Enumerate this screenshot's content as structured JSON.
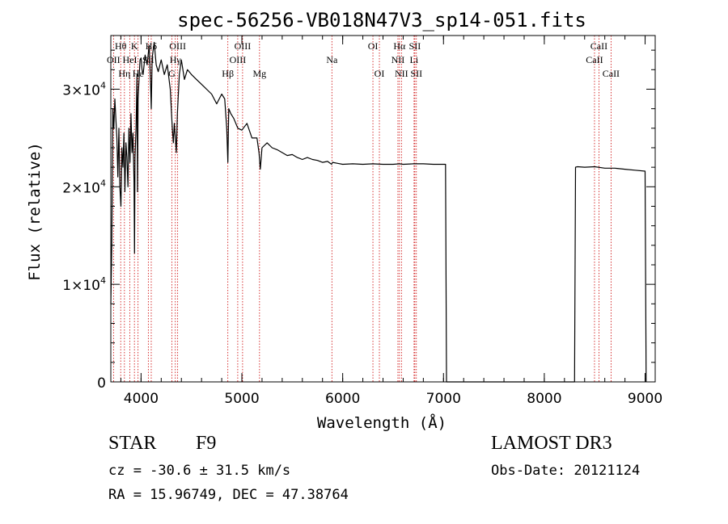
{
  "chart_data": {
    "type": "line",
    "title": "spec-56256-VB018N47V3_sp14-051.fits",
    "xlabel": "Wavelength (Å)",
    "ylabel": "Flux (relative)",
    "xlim": [
      3700,
      9100
    ],
    "ylim": [
      0,
      35500
    ],
    "x_ticks": [
      4000,
      5000,
      6000,
      7000,
      8000,
      9000
    ],
    "x_tick_labels": [
      "4000",
      "5000",
      "6000",
      "7000",
      "8000",
      "9000"
    ],
    "y_ticks": [
      {
        "value": 0,
        "mantissa": "0",
        "exponent": ""
      },
      {
        "value": 10000,
        "mantissa": "1×10",
        "exponent": "4"
      },
      {
        "value": 20000,
        "mantissa": "2×10",
        "exponent": "4"
      },
      {
        "value": 30000,
        "mantissa": "3×10",
        "exponent": "4"
      }
    ],
    "grid": false,
    "series": [
      {
        "name": "spectrum",
        "x": [
          3700,
          3710,
          3720,
          3730,
          3740,
          3750,
          3760,
          3770,
          3780,
          3790,
          3800,
          3810,
          3820,
          3830,
          3840,
          3850,
          3860,
          3870,
          3880,
          3890,
          3900,
          3910,
          3920,
          3930,
          3935,
          3940,
          3950,
          3960,
          3965,
          3970,
          3980,
          3990,
          4000,
          4010,
          4020,
          4040,
          4060,
          4080,
          4095,
          4101,
          4110,
          4130,
          4150,
          4170,
          4200,
          4230,
          4260,
          4290,
          4310,
          4320,
          4330,
          4340,
          4350,
          4360,
          4380,
          4400,
          4430,
          4460,
          4500,
          4550,
          4600,
          4650,
          4700,
          4750,
          4800,
          4830,
          4850,
          4861,
          4870,
          4890,
          4920,
          4960,
          5000,
          5050,
          5100,
          5150,
          5170,
          5183,
          5200,
          5250,
          5300,
          5350,
          5400,
          5450,
          5500,
          5550,
          5600,
          5650,
          5700,
          5750,
          5800,
          5850,
          5890,
          5900,
          5950,
          6000,
          6100,
          6200,
          6300,
          6400,
          6500,
          6563,
          6600,
          6700,
          6800,
          6900,
          7000,
          7020,
          7030,
          7100,
          7500,
          8000,
          8300,
          8310,
          8330,
          8400,
          8500,
          8600,
          8700,
          8800,
          8900,
          9000,
          9010
        ],
        "y": [
          8000,
          14000,
          28000,
          26000,
          29000,
          27000,
          25000,
          21000,
          26000,
          20000,
          18000,
          24000,
          22000,
          25500,
          19500,
          24500,
          23000,
          20000,
          26000,
          22500,
          27500,
          23500,
          25500,
          20500,
          13200,
          23000,
          26000,
          31500,
          19500,
          29000,
          31000,
          33000,
          33200,
          32000,
          31500,
          33500,
          32500,
          34500,
          30500,
          28000,
          33200,
          34800,
          32500,
          31800,
          33000,
          31500,
          32500,
          30000,
          26000,
          24500,
          26500,
          25000,
          23500,
          27500,
          31500,
          33000,
          31000,
          32000,
          31500,
          31000,
          30500,
          30000,
          29500,
          28500,
          29500,
          29000,
          26000,
          22500,
          28000,
          27500,
          27000,
          26000,
          25800,
          26500,
          25000,
          25000,
          23500,
          21800,
          24000,
          24500,
          24000,
          23800,
          23500,
          23200,
          23300,
          23000,
          22800,
          23000,
          22800,
          22700,
          22500,
          22600,
          22300,
          22500,
          22400,
          22300,
          22350,
          22300,
          22350,
          22300,
          22300,
          22350,
          22300,
          22350,
          22350,
          22300,
          22300,
          22300,
          0,
          0,
          0,
          0,
          0,
          22000,
          22050,
          22000,
          22050,
          21900,
          21900,
          21800,
          21700,
          21600,
          0
        ]
      }
    ],
    "spectral_lines": [
      {
        "name": "Hθ",
        "wavelength": 3798,
        "row": 0
      },
      {
        "name": "OII",
        "wavelength": 3727,
        "row": 1
      },
      {
        "name": "Hη",
        "wavelength": 3835,
        "row": 2
      },
      {
        "name": "K",
        "wavelength": 3934,
        "row": 0
      },
      {
        "name": "HeI",
        "wavelength": 3889,
        "row": 1
      },
      {
        "name": "SII",
        "wavelength": 4072,
        "row": 1
      },
      {
        "name": "Hε",
        "wavelength": 3970,
        "row": 2
      },
      {
        "name": "Hδ",
        "wavelength": 4101,
        "row": 0
      },
      {
        "name": "OIII",
        "wavelength": 4363,
        "row": 0
      },
      {
        "name": "Hγ",
        "wavelength": 4340,
        "row": 1
      },
      {
        "name": "G",
        "wavelength": 4305,
        "row": 2
      },
      {
        "name": "OIII",
        "wavelength": 5007,
        "row": 0
      },
      {
        "name": "OIII",
        "wavelength": 4959,
        "row": 1
      },
      {
        "name": "Hβ",
        "wavelength": 4861,
        "row": 2
      },
      {
        "name": "Mg",
        "wavelength": 5175,
        "row": 2
      },
      {
        "name": "Na",
        "wavelength": 5893,
        "row": 1
      },
      {
        "name": "OI",
        "wavelength": 6300,
        "row": 0
      },
      {
        "name": "OI",
        "wavelength": 6364,
        "row": 2
      },
      {
        "name": "Hα",
        "wavelength": 6563,
        "row": 0
      },
      {
        "name": "NII",
        "wavelength": 6548,
        "row": 1
      },
      {
        "name": "NII",
        "wavelength": 6583,
        "row": 2
      },
      {
        "name": "SII",
        "wavelength": 6716,
        "row": 0
      },
      {
        "name": "Li",
        "wavelength": 6708,
        "row": 1
      },
      {
        "name": "SII",
        "wavelength": 6731,
        "row": 2
      },
      {
        "name": "CaII",
        "wavelength": 8542,
        "row": 0
      },
      {
        "name": "CaII",
        "wavelength": 8498,
        "row": 1
      },
      {
        "name": "CaII",
        "wavelength": 8662,
        "row": 2
      }
    ],
    "colors": {
      "spectrum": "#000000",
      "line_markers": "#cc0000",
      "axes": "#000000"
    }
  },
  "info": {
    "object_class": "STAR",
    "subclass": "F9",
    "survey": "LAMOST DR3",
    "cz": "cz = -30.6 ± 31.5 km/s",
    "obs_date": "Obs-Date: 20121124",
    "coords": "RA =  15.96749, DEC =  47.38764"
  }
}
